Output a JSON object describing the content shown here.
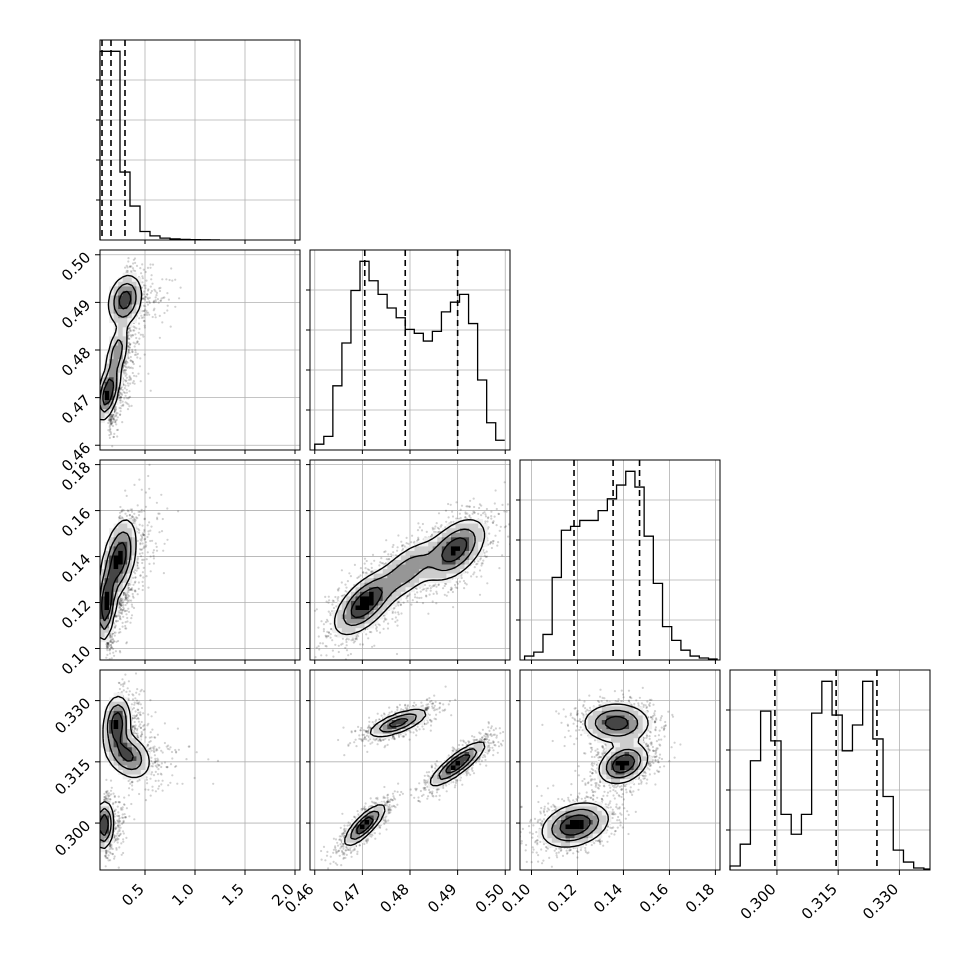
{
  "chart_data": {
    "type": "corner",
    "params": [
      {
        "range": [
          0.05,
          2.05
        ],
        "ticks": [
          0.5,
          1.0,
          1.5,
          2.0
        ],
        "tick_labels": [
          "0.5",
          "1.0",
          "1.5",
          "2.0"
        ],
        "quantiles": [
          0.07,
          0.16,
          0.3
        ],
        "hist": {
          "edges_start": 0.05,
          "bin_width": 0.1,
          "counts": [
            1.0,
            1.0,
            0.36,
            0.18,
            0.045,
            0.022,
            0.01,
            0.006,
            0.003,
            0.002,
            0.001,
            0.0005
          ]
        }
      },
      {
        "range": [
          0.459,
          0.501
        ],
        "ticks": [
          0.46,
          0.47,
          0.48,
          0.49,
          0.5
        ],
        "tick_labels": [
          "0.46",
          "0.47",
          "0.48",
          "0.49",
          "0.50"
        ],
        "quantiles": [
          0.4705,
          0.479,
          0.49
        ],
        "hist": {
          "edges_start": 0.46,
          "bin_width": 0.0019,
          "counts": [
            0.03,
            0.07,
            0.33,
            0.55,
            0.82,
            0.97,
            0.87,
            0.8,
            0.73,
            0.68,
            0.62,
            0.6,
            0.56,
            0.61,
            0.71,
            0.76,
            0.8,
            0.65,
            0.36,
            0.14,
            0.05
          ]
        }
      },
      {
        "range": [
          0.095,
          0.182
        ],
        "ticks": [
          0.1,
          0.12,
          0.14,
          0.16,
          0.18
        ],
        "tick_labels": [
          "0.10",
          "0.12",
          "0.14",
          "0.16",
          "0.18"
        ],
        "quantiles": [
          0.1185,
          0.1355,
          0.147
        ],
        "hist": {
          "edges_start": 0.097,
          "bin_width": 0.004,
          "counts": [
            0.02,
            0.04,
            0.13,
            0.42,
            0.66,
            0.68,
            0.71,
            0.71,
            0.76,
            0.82,
            0.89,
            0.96,
            0.88,
            0.63,
            0.39,
            0.17,
            0.1,
            0.05,
            0.02,
            0.01,
            0.005
          ]
        }
      },
      {
        "range": [
          0.2885,
          0.3375
        ],
        "ticks": [
          0.3,
          0.315,
          0.33
        ],
        "tick_labels": [
          "0.300",
          "0.315",
          "0.330"
        ],
        "quantiles": [
          0.2995,
          0.3145,
          0.3245
        ],
        "hist": {
          "edges_start": 0.2885,
          "bin_width": 0.0025,
          "counts": [
            0.02,
            0.13,
            0.55,
            0.8,
            0.65,
            0.28,
            0.18,
            0.28,
            0.79,
            0.95,
            0.78,
            0.6,
            0.73,
            0.95,
            0.66,
            0.37,
            0.1,
            0.04,
            0.01,
            0.005
          ]
        }
      }
    ],
    "pairs": [
      {
        "x": 0,
        "y": 1,
        "modes": [
          {
            "cx": 0.13,
            "cy": 0.471,
            "sx": 0.06,
            "sy": 0.003,
            "rho": 0.5,
            "w": 1.0
          },
          {
            "cx": 0.22,
            "cy": 0.4795,
            "sx": 0.06,
            "sy": 0.003,
            "rho": 0.5,
            "w": 0.6
          },
          {
            "cx": 0.3,
            "cy": 0.4905,
            "sx": 0.09,
            "sy": 0.0028,
            "rho": 0.2,
            "w": 0.85
          }
        ],
        "scatter_n": 1600,
        "seed": 11
      },
      {
        "x": 0,
        "y": 2,
        "modes": [
          {
            "cx": 0.11,
            "cy": 0.119,
            "sx": 0.05,
            "sy": 0.008,
            "rho": 0.3,
            "w": 1.0
          },
          {
            "cx": 0.24,
            "cy": 0.139,
            "sx": 0.09,
            "sy": 0.009,
            "rho": 0.4,
            "w": 0.95
          }
        ],
        "scatter_n": 1600,
        "seed": 12
      },
      {
        "x": 0,
        "y": 3,
        "modes": [
          {
            "cx": 0.09,
            "cy": 0.2995,
            "sx": 0.05,
            "sy": 0.003,
            "rho": 0.1,
            "w": 1.0
          },
          {
            "cx": 0.22,
            "cy": 0.3245,
            "sx": 0.07,
            "sy": 0.0035,
            "rho": 0.1,
            "w": 0.9
          },
          {
            "cx": 0.33,
            "cy": 0.3165,
            "sx": 0.12,
            "sy": 0.003,
            "rho": -0.3,
            "w": 0.75
          }
        ],
        "scatter_n": 1600,
        "seed": 13
      },
      {
        "x": 1,
        "y": 2,
        "modes": [
          {
            "cx": 0.4705,
            "cy": 0.1195,
            "sx": 0.0033,
            "sy": 0.007,
            "rho": 0.6,
            "w": 1.0
          },
          {
            "cx": 0.4795,
            "cy": 0.134,
            "sx": 0.0035,
            "sy": 0.007,
            "rho": 0.6,
            "w": 0.55
          },
          {
            "cx": 0.4895,
            "cy": 0.143,
            "sx": 0.0033,
            "sy": 0.007,
            "rho": 0.5,
            "w": 0.9
          }
        ],
        "scatter_n": 2600,
        "seed": 14
      },
      {
        "x": 1,
        "y": 3,
        "modes": [
          {
            "cx": 0.4705,
            "cy": 0.2995,
            "sx": 0.0022,
            "sy": 0.0026,
            "rho": 0.8,
            "w": 1.0
          },
          {
            "cx": 0.4775,
            "cy": 0.3245,
            "sx": 0.0032,
            "sy": 0.0018,
            "rho": 0.7,
            "w": 0.85
          },
          {
            "cx": 0.49,
            "cy": 0.3145,
            "sx": 0.003,
            "sy": 0.0028,
            "rho": 0.85,
            "w": 1.0
          }
        ],
        "scatter_n": 2600,
        "seed": 15
      },
      {
        "x": 2,
        "y": 3,
        "modes": [
          {
            "cx": 0.119,
            "cy": 0.2995,
            "sx": 0.0075,
            "sy": 0.0028,
            "rho": 0.3,
            "w": 1.0
          },
          {
            "cx": 0.14,
            "cy": 0.3145,
            "sx": 0.0055,
            "sy": 0.0025,
            "rho": 0.3,
            "w": 1.0
          },
          {
            "cx": 0.137,
            "cy": 0.3245,
            "sx": 0.0075,
            "sy": 0.0025,
            "rho": 0.0,
            "w": 0.85
          }
        ],
        "scatter_n": 2600,
        "seed": 16
      }
    ],
    "grid": true,
    "colors": {
      "ink": "#000000",
      "grid": "#b0b0b0"
    }
  }
}
